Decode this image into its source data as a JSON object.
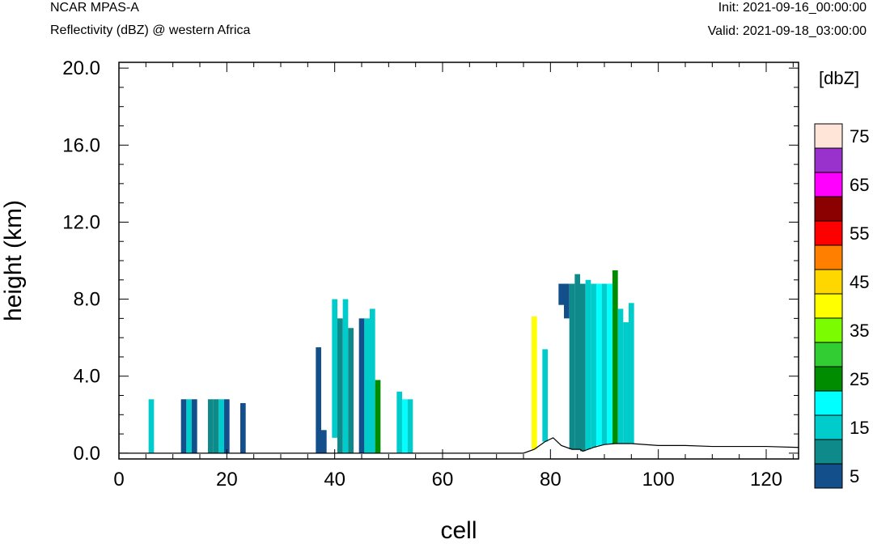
{
  "header": {
    "model": "NCAR MPAS-A",
    "field": "Reflectivity (dBZ) @ western Africa",
    "init": "Init: 2021-09-16_00:00:00",
    "valid": "Valid: 2021-09-18_03:00:00"
  },
  "chart_data": {
    "type": "heatmap",
    "title": "Reflectivity (dBZ) @ western Africa",
    "xlabel": "cell",
    "ylabel": "height (km)",
    "xlim": [
      0,
      126
    ],
    "ylim": [
      -0.3,
      20.3
    ],
    "x_ticks": [
      "0",
      "20",
      "40",
      "60",
      "80",
      "100",
      "120"
    ],
    "y_ticks": [
      "0.0",
      "4.0",
      "8.0",
      "12.0",
      "16.0",
      "20.0"
    ],
    "grid": false,
    "colorbar": {
      "unit": "[dbZ]",
      "placement": "right",
      "levels": [
        5,
        10,
        15,
        20,
        25,
        30,
        35,
        40,
        45,
        50,
        55,
        60,
        65,
        70,
        75
      ],
      "colors": [
        "#134f8a",
        "#0e8a8a",
        "#00cccc",
        "#00ffff",
        "#008c00",
        "#32cd32",
        "#7cfc00",
        "#ffff00",
        "#ffd700",
        "#ff8000",
        "#ff0000",
        "#8b0000",
        "#ff00ff",
        "#9932cc",
        "#ffe4d8"
      ],
      "tick_labels": [
        "5",
        "15",
        "25",
        "35",
        "45",
        "55",
        "65",
        "75"
      ]
    },
    "terrain": {
      "x": [
        0,
        75,
        77,
        79,
        80.5,
        82,
        84,
        85.5,
        86,
        88,
        90,
        92,
        95,
        100,
        105,
        110,
        115,
        120,
        126
      ],
      "height_km": [
        0,
        0,
        0.2,
        0.6,
        0.8,
        0.4,
        0.2,
        0.2,
        0.1,
        0.3,
        0.45,
        0.5,
        0.5,
        0.4,
        0.4,
        0.35,
        0.35,
        0.35,
        0.3
      ]
    },
    "columns": [
      {
        "cell": 6,
        "bottom_km": 0,
        "top_km": 2.8,
        "dbz": 15
      },
      {
        "cell": 12,
        "bottom_km": 0,
        "top_km": 2.8,
        "dbz": 8
      },
      {
        "cell": 13,
        "bottom_km": 0,
        "top_km": 2.8,
        "dbz": 15
      },
      {
        "cell": 14,
        "bottom_km": 0,
        "top_km": 2.8,
        "dbz": 5
      },
      {
        "cell": 17,
        "bottom_km": 0,
        "top_km": 2.8,
        "dbz": 10
      },
      {
        "cell": 18,
        "bottom_km": 0,
        "top_km": 2.8,
        "dbz": 10
      },
      {
        "cell": 19,
        "bottom_km": 0,
        "top_km": 2.8,
        "dbz": 15
      },
      {
        "cell": 20,
        "bottom_km": 0,
        "top_km": 2.8,
        "dbz": 8
      },
      {
        "cell": 23,
        "bottom_km": 0,
        "top_km": 2.6,
        "dbz": 5
      },
      {
        "cell": 37,
        "bottom_km": 0,
        "top_km": 5.5,
        "dbz": 5
      },
      {
        "cell": 38,
        "bottom_km": 0,
        "top_km": 1.2,
        "dbz": 5
      },
      {
        "cell": 40,
        "bottom_km": 0.8,
        "top_km": 8.0,
        "dbz": 15
      },
      {
        "cell": 41,
        "bottom_km": 0,
        "top_km": 7.0,
        "dbz": 10
      },
      {
        "cell": 42,
        "bottom_km": 0,
        "top_km": 8.0,
        "dbz": 15
      },
      {
        "cell": 43,
        "bottom_km": 0,
        "top_km": 6.5,
        "dbz": 10
      },
      {
        "cell": 45,
        "bottom_km": 0,
        "top_km": 7.0,
        "dbz": 5
      },
      {
        "cell": 46,
        "bottom_km": 0,
        "top_km": 7.0,
        "dbz": 15
      },
      {
        "cell": 47,
        "bottom_km": 0,
        "top_km": 7.5,
        "dbz": 15
      },
      {
        "cell": 48,
        "bottom_km": 0,
        "top_km": 3.8,
        "dbz": 25
      },
      {
        "cell": 52,
        "bottom_km": 0,
        "top_km": 3.2,
        "dbz": 15
      },
      {
        "cell": 53,
        "bottom_km": 0,
        "top_km": 2.8,
        "dbz": 20
      },
      {
        "cell": 54,
        "bottom_km": 0,
        "top_km": 2.8,
        "dbz": 15
      },
      {
        "cell": 77,
        "bottom_km": 0.2,
        "top_km": 7.1,
        "dbz": 40
      },
      {
        "cell": 79,
        "bottom_km": 0.6,
        "top_km": 5.4,
        "dbz": 15
      },
      {
        "cell": 82,
        "bottom_km": 7.7,
        "top_km": 8.8,
        "dbz": 5
      },
      {
        "cell": 83,
        "bottom_km": 7.0,
        "top_km": 8.8,
        "dbz": 5
      },
      {
        "cell": 84,
        "bottom_km": 0.2,
        "top_km": 8.8,
        "dbz": 10
      },
      {
        "cell": 85,
        "bottom_km": 0.2,
        "top_km": 9.3,
        "dbz": 10
      },
      {
        "cell": 86,
        "bottom_km": 0.1,
        "top_km": 8.8,
        "dbz": 10
      },
      {
        "cell": 87,
        "bottom_km": 0.2,
        "top_km": 9.0,
        "dbz": 15
      },
      {
        "cell": 88,
        "bottom_km": 0.3,
        "top_km": 8.8,
        "dbz": 15
      },
      {
        "cell": 89,
        "bottom_km": 0.4,
        "top_km": 8.8,
        "dbz": 20
      },
      {
        "cell": 90,
        "bottom_km": 0.45,
        "top_km": 8.8,
        "dbz": 15
      },
      {
        "cell": 91,
        "bottom_km": 0.5,
        "top_km": 8.8,
        "dbz": 20
      },
      {
        "cell": 92,
        "bottom_km": 0.5,
        "top_km": 9.5,
        "dbz": 25
      },
      {
        "cell": 93,
        "bottom_km": 0.5,
        "top_km": 7.5,
        "dbz": 15
      },
      {
        "cell": 94,
        "bottom_km": 0.5,
        "top_km": 6.8,
        "dbz": 15
      },
      {
        "cell": 95,
        "bottom_km": 0.5,
        "top_km": 7.8,
        "dbz": 15
      }
    ]
  }
}
